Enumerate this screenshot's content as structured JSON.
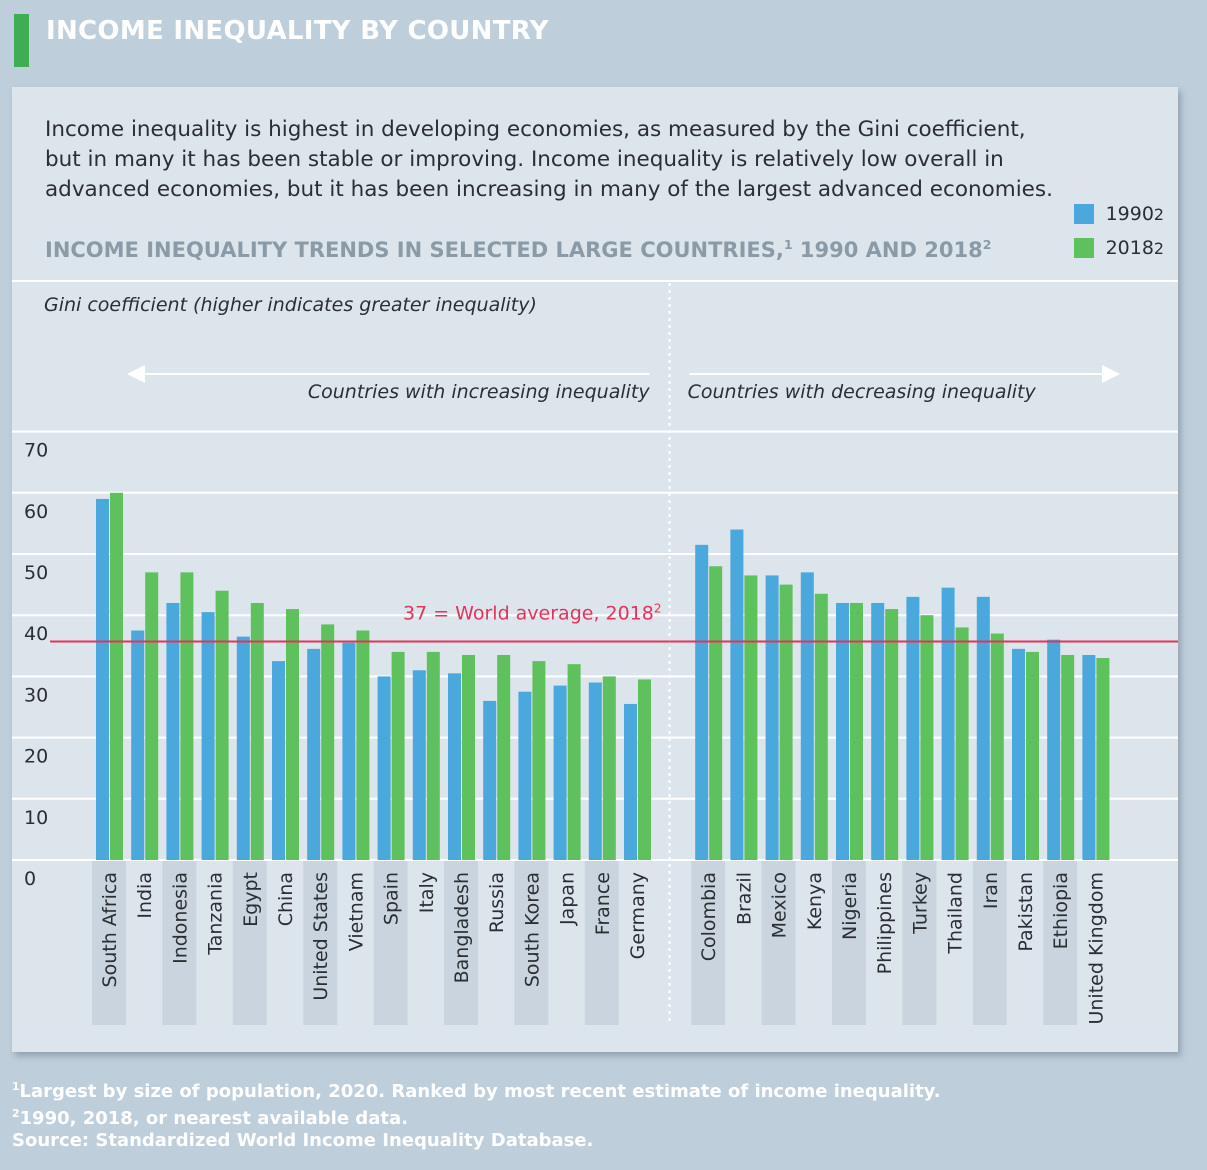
{
  "header": {
    "title": "INCOME INEQUALITY BY COUNTRY"
  },
  "intro": "Income inequality is highest in developing economies, as measured by the Gini coefficient, but in many it has been stable or improving. Income inequality is relatively low overall in advanced economies, but it has been increasing in many of the largest advanced economies.",
  "subtitle": {
    "text": "INCOME INEQUALITY TRENDS IN SELECTED LARGE COUNTRIES,",
    "sup1": "1",
    "text2": " 1990 AND 2018",
    "sup2": "2"
  },
  "colors": {
    "s1990": "#4aa8dd",
    "s2018": "#5fc05e",
    "average": "#e33358",
    "band": "#c9d4df"
  },
  "chart_data": {
    "type": "bar",
    "ylabel": "Gini coefficient (higher indicates greater inequality)",
    "ylim": [
      0,
      70
    ],
    "yticks": [
      "0",
      "10",
      "20",
      "30",
      "40",
      "50",
      "60",
      "70"
    ],
    "groups": {
      "increasing": "Countries with increasing inequality",
      "decreasing": "Countries with decreasing inequality"
    },
    "average": {
      "value": 37,
      "label": "37 = World average, 2018",
      "sup": "2"
    },
    "series": [
      {
        "name": "1990",
        "sup": "2"
      },
      {
        "name": "2018",
        "sup": "2"
      }
    ],
    "categories": [
      "South Africa",
      "India",
      "Indonesia",
      "Tanzania",
      "Egypt",
      "China",
      "United States",
      "Vietnam",
      "Spain",
      "Italy",
      "Bangladesh",
      "Russia",
      "South Korea",
      "Japan",
      "France",
      "Germany",
      "Colombia",
      "Brazil",
      "Mexico",
      "Kenya",
      "Nigeria",
      "Philippines",
      "Turkey",
      "Thailand",
      "Iran",
      "Pakistan",
      "Ethiopia",
      "United Kingdom"
    ],
    "values_1990": [
      59,
      37.5,
      42,
      40.5,
      36.5,
      32.5,
      34.5,
      35.5,
      30,
      31,
      30.5,
      26,
      27.5,
      28.5,
      29,
      25.5,
      51.5,
      54,
      46.5,
      47,
      42,
      42,
      43,
      44.5,
      43,
      34.5,
      36,
      33.5
    ],
    "values_2018": [
      60,
      47,
      47,
      44,
      42,
      41,
      38.5,
      37.5,
      34,
      34,
      33.5,
      33.5,
      32.5,
      32,
      30,
      29.5,
      48,
      46.5,
      45,
      43.5,
      42,
      41,
      40,
      38,
      37,
      34,
      33.5,
      33
    ],
    "increasing_count": 16
  },
  "footnotes": [
    {
      "sup": "1",
      "text": "Largest by size of population, 2020. Ranked by most recent estimate of income inequality."
    },
    {
      "sup": "2",
      "text": "1990, 2018, or nearest available data."
    },
    {
      "sup": "",
      "text": "Source: Standardized World Income Inequality Database."
    }
  ]
}
